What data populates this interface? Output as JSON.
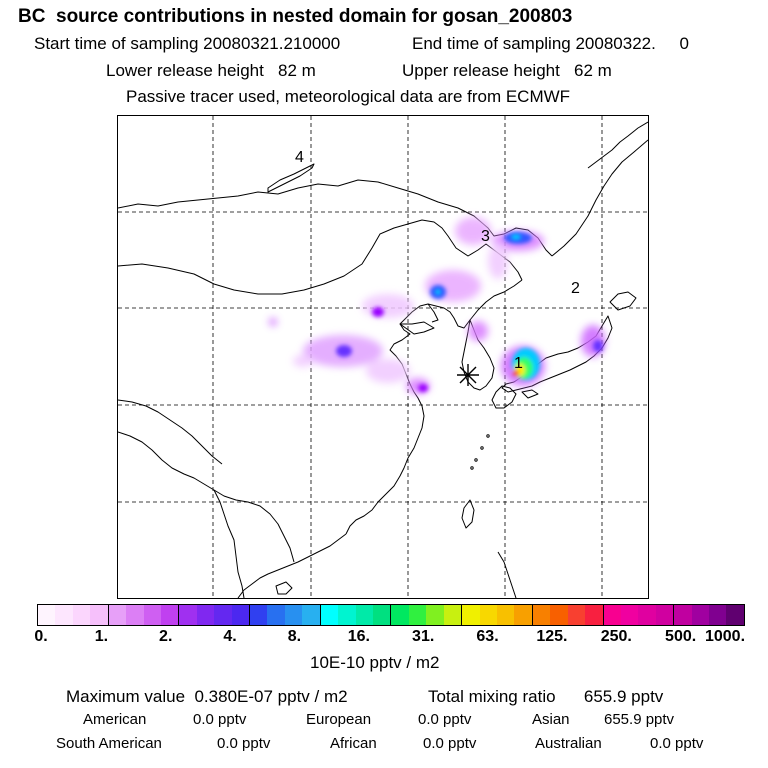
{
  "header": {
    "title": "BC  source contributions in nested domain for gosan_200803",
    "start_sampling": "Start time of sampling 20080321.210000",
    "end_sampling": "End time of sampling 20080322.     0",
    "lower_release": "Lower release height   82 m",
    "upper_release": "Upper release height   62 m",
    "tracer_note": "Passive tracer used, meteorological data are from ECMWF"
  },
  "map": {
    "region_labels": [
      "4",
      "3",
      "2",
      "1"
    ],
    "receptor_marker": "star-asterisk-icon",
    "colors": {
      "coast": "#000000",
      "grid": "#000000",
      "plume_light": "#f0c8ff",
      "plume_mid": "#cc66ff",
      "plume_strong": "#9900ff",
      "plume_blue": "#3355ff",
      "plume_cyan": "#00ccff",
      "plume_green": "#33ff66",
      "plume_yellow": "#ffee00",
      "plume_red": "#ff3300"
    }
  },
  "colorbar": {
    "segment_colors": [
      "#fef4fe",
      "#fde6fe",
      "#fbd6fd",
      "#f6c0fb",
      "#e7a0f8",
      "#dc7ff5",
      "#cf5ff2",
      "#c040f0",
      "#a030f0",
      "#8028f0",
      "#6428f0",
      "#4c28f0",
      "#3040f0",
      "#2870f0",
      "#2890f0",
      "#28b0f0",
      "#00ffff",
      "#00f4d0",
      "#00eaa8",
      "#00e080",
      "#00e860",
      "#30f040",
      "#80f020",
      "#c8f010",
      "#f0f000",
      "#f8d800",
      "#f8c000",
      "#f8a000",
      "#f88000",
      "#f86000",
      "#f84030",
      "#f82040",
      "#f80090",
      "#f000a0",
      "#e000a0",
      "#d000a0",
      "#c000a0",
      "#a000a0",
      "#800090",
      "#600070"
    ],
    "tick_labels": [
      "0.",
      "1.",
      "2.",
      "4.",
      "8.",
      "16.",
      "31.",
      "63.",
      "125.",
      "250.",
      "500.",
      "1000."
    ],
    "units": "10E-10 pptv / m2"
  },
  "stats": {
    "maximum_value": "Maximum value  0.380E-07 pptv / m2",
    "total_mixing": "Total mixing ratio      655.9 pptv",
    "american_label": "American",
    "american_value": "0.0 pptv",
    "european_label": "European",
    "european_value": "0.0 pptv",
    "asian_label": "Asian",
    "asian_value": "655.9 pptv",
    "south_american_label": "South American",
    "south_american_value": "0.0 pptv",
    "african_label": "African",
    "african_value": "0.0 pptv",
    "australian_label": "Australian",
    "australian_value": "0.0 pptv"
  }
}
